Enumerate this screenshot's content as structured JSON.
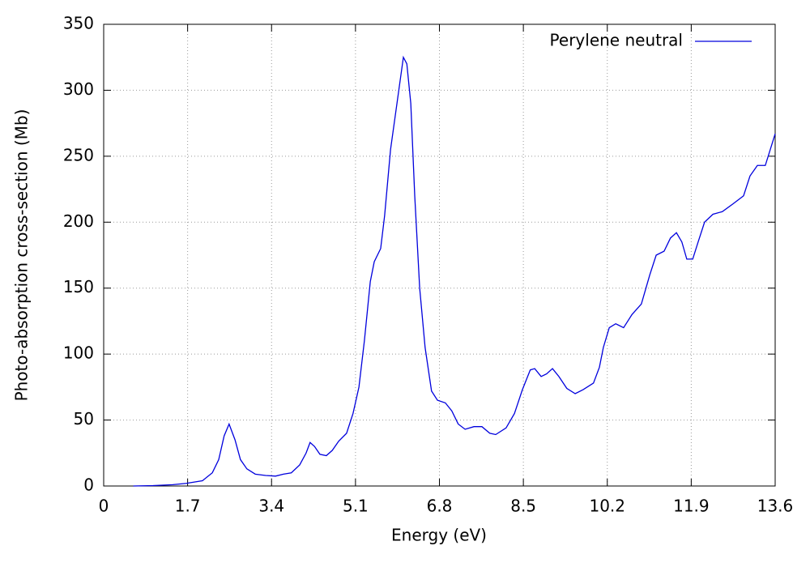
{
  "chart_data": {
    "type": "line",
    "xlabel": "Energy (eV)",
    "ylabel": "Photo-absorption cross-section (Mb)",
    "x": [
      0.6,
      1.0,
      1.4,
      1.67,
      2.0,
      2.2,
      2.33,
      2.44,
      2.54,
      2.66,
      2.77,
      2.9,
      3.07,
      3.28,
      3.48,
      3.64,
      3.8,
      3.97,
      4.1,
      4.18,
      4.27,
      4.38,
      4.51,
      4.63,
      4.76,
      4.92,
      5.05,
      5.17,
      5.28,
      5.4,
      5.48,
      5.61,
      5.69,
      5.81,
      5.94,
      6.07,
      6.14,
      6.22,
      6.3,
      6.4,
      6.51,
      6.64,
      6.76,
      6.92,
      7.05,
      7.18,
      7.32,
      7.5,
      7.66,
      7.82,
      7.94,
      8.15,
      8.32,
      8.48,
      8.64,
      8.73,
      8.86,
      8.97,
      9.09,
      9.22,
      9.38,
      9.55,
      9.71,
      9.92,
      10.04,
      10.12,
      10.24,
      10.37,
      10.53,
      10.7,
      10.89,
      11.06,
      11.19,
      11.35,
      11.48,
      11.6,
      11.71,
      11.81,
      11.93,
      12.04,
      12.17,
      12.34,
      12.53,
      12.75,
      12.96,
      13.09,
      13.24,
      13.4,
      13.6
    ],
    "series": [
      {
        "name": "Perylene neutral",
        "color": "#0000dd",
        "values": [
          0,
          0.3,
          1,
          2,
          4,
          10,
          20,
          38,
          47,
          35,
          20,
          13,
          9,
          8,
          7.5,
          9,
          10,
          16,
          25,
          33,
          30,
          24,
          23,
          27,
          34,
          40,
          55,
          75,
          110,
          155,
          170,
          180,
          205,
          255,
          290,
          325,
          320,
          290,
          220,
          150,
          105,
          72,
          65,
          63,
          57,
          47,
          43,
          45,
          45,
          40,
          39,
          44,
          55,
          73,
          88,
          89,
          83,
          85,
          89,
          83,
          74,
          70,
          73,
          78,
          90,
          105,
          120,
          123,
          120,
          130,
          138,
          160,
          175,
          178,
          188,
          192,
          185,
          172,
          172,
          185,
          200,
          206,
          208,
          214,
          220,
          235,
          243,
          243,
          267
        ]
      }
    ],
    "xlim": [
      0,
      13.6
    ],
    "xticks": [
      0,
      1.7,
      3.4,
      5.1,
      6.8,
      8.5,
      10.2,
      11.9,
      13.6
    ],
    "ylim": [
      0,
      350
    ],
    "yticks": [
      0,
      50,
      100,
      150,
      200,
      250,
      300,
      350
    ],
    "grid": true,
    "legend": "top-right"
  }
}
